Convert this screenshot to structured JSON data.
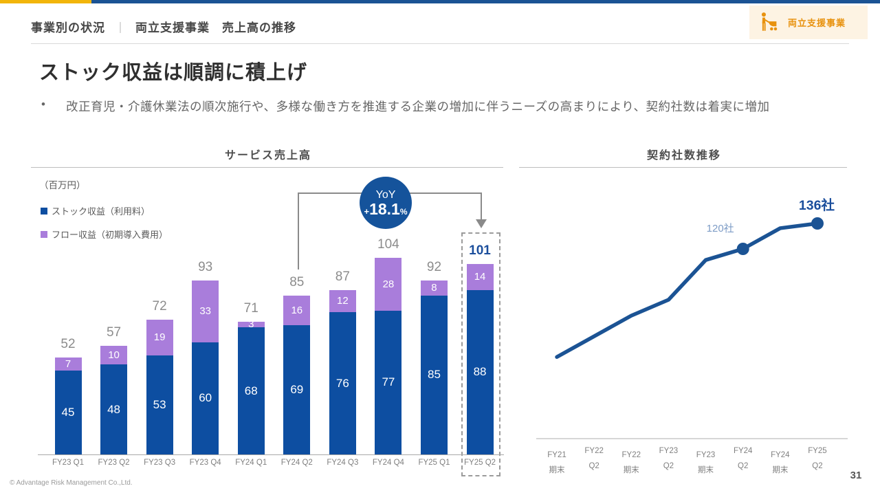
{
  "header": {
    "title_left": "事業別の状況",
    "separator": "｜",
    "title_right": "両立支援事業　売上高の推移",
    "badge_label": "両立支援事業"
  },
  "title": "ストック収益は順調に積上げ",
  "bullet": {
    "marker": "•",
    "text": "改正育児・介護休業法の順次施行や、多様な働き方を推進する企業の増加に伴うニーズの高まりにより、契約社数は着実に増加"
  },
  "colors": {
    "strip_gold": "#f2b50a",
    "strip_blue": "#1b5394",
    "bar_stock_blue": "#0d4ea1",
    "bar_flow_purple": "#a97ddb",
    "line_blue": "#1b5394",
    "yoy_circle_blue": "#15539b",
    "highlight_text_blue": "#1b4e9c",
    "badge_orange": "#e8920e",
    "badge_bg": "#fdf3e3"
  },
  "chart_data": [
    {
      "type": "bar",
      "stacked": true,
      "title": "サービス売上高",
      "unit_label": "（百万円）",
      "categories": [
        "FY23 Q1",
        "FY23 Q2",
        "FY23 Q3",
        "FY23 Q4",
        "FY24 Q1",
        "FY24 Q2",
        "FY24 Q3",
        "FY24 Q4",
        "FY25 Q1",
        "FY25 Q2"
      ],
      "series": [
        {
          "name": "ストック収益（利用料）",
          "color": "#0d4ea1",
          "values": [
            45,
            48,
            53,
            60,
            68,
            69,
            76,
            77,
            85,
            88
          ]
        },
        {
          "name": "フロー収益（初期導入費用）",
          "color": "#a97ddb",
          "values": [
            7,
            10,
            19,
            33,
            3,
            16,
            12,
            28,
            8,
            14
          ]
        }
      ],
      "totals": [
        52,
        57,
        72,
        93,
        71,
        85,
        87,
        104,
        92,
        101
      ],
      "highlight_index": 9,
      "yoy_annotation": {
        "label": "YoY",
        "sign": "+",
        "value": "18.1",
        "suffix": "%"
      },
      "legend_position": "top-left",
      "grid": false
    },
    {
      "type": "line",
      "title": "契約社数推移",
      "categories": [
        [
          "FY21",
          "期末"
        ],
        [
          "FY22",
          "Q2"
        ],
        [
          "FY22",
          "期末"
        ],
        [
          "FY23",
          "Q2"
        ],
        [
          "FY23",
          "期末"
        ],
        [
          "FY24",
          "Q2"
        ],
        [
          "FY24",
          "期末"
        ],
        [
          "FY25",
          "Q2"
        ]
      ],
      "values": [
        52,
        65,
        78,
        88,
        113,
        120,
        133,
        136
      ],
      "values_note": "only FY24 Q2 (120) and FY25 Q2 (136) are labeled on the chart; other values estimated from line position",
      "labeled_points": [
        {
          "index": 5,
          "label": "120社",
          "emphasis": false
        },
        {
          "index": 7,
          "label": "136社",
          "emphasis": true
        }
      ],
      "grid": false
    }
  ],
  "footer": {
    "copyright": "© Advantage Risk Management Co.,Ltd.",
    "page_number": "31"
  }
}
